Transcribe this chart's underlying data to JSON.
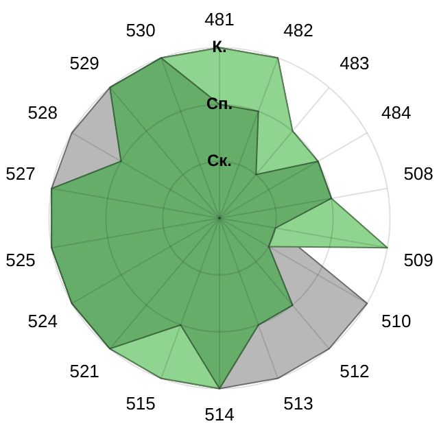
{
  "chart_data": {
    "type": "radar",
    "categories": [
      "481",
      "482",
      "483",
      "484",
      "508",
      "509",
      "510",
      "512",
      "513",
      "514",
      "515",
      "521",
      "524",
      "525",
      "527",
      "528",
      "529",
      "530"
    ],
    "series": [
      {
        "color": "#b8b8b8",
        "values": [
          3,
          3,
          2,
          2,
          2,
          1,
          3,
          3,
          3,
          3,
          3,
          3,
          3,
          3,
          3,
          3,
          3,
          3
        ]
      },
      {
        "color": "#8fd48f",
        "values": [
          3,
          3,
          2,
          2,
          2,
          3,
          1,
          2,
          2,
          3,
          3,
          3,
          3,
          3,
          3,
          2,
          3,
          3
        ]
      },
      {
        "color": "#66ad6a",
        "values": [
          2,
          2,
          1,
          2,
          2,
          1,
          1,
          2,
          2,
          3,
          2,
          3,
          3,
          3,
          3,
          2,
          3,
          3
        ]
      }
    ],
    "ylim": [
      0,
      3
    ],
    "yticks": [
      {
        "value": 1,
        "label": "Ск."
      },
      {
        "value": 2,
        "label": "Сп."
      },
      {
        "value": 3,
        "label": "К."
      }
    ],
    "grid": true,
    "legend": false,
    "marker": "none"
  }
}
